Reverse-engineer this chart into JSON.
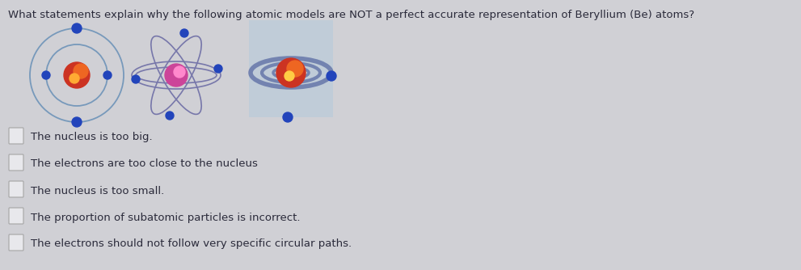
{
  "title": "What statements explain why the following atomic models are NOT a perfect accurate representation of Beryllium (Be) atoms?",
  "title_fontsize": 9.5,
  "title_color": "#2a2a3a",
  "bg_color": "#d0d0d5",
  "options": [
    "The nucleus is too big.",
    "The electrons are too close to the nucleus",
    "The nucleus is too small.",
    "The proportion of subatomic particles is incorrect.",
    "The electrons should not follow very specific circular paths."
  ],
  "option_fontsize": 9.5,
  "option_color": "#2a2a3a",
  "checkbox_color": "#e8e8ec",
  "checkbox_edge": "#aaaaaa",
  "electron_color": "#2244bb",
  "orbit_color_1": "#8899bb",
  "orbit_color_2": "#7777aa",
  "orbit_color_3": "#5566aa"
}
